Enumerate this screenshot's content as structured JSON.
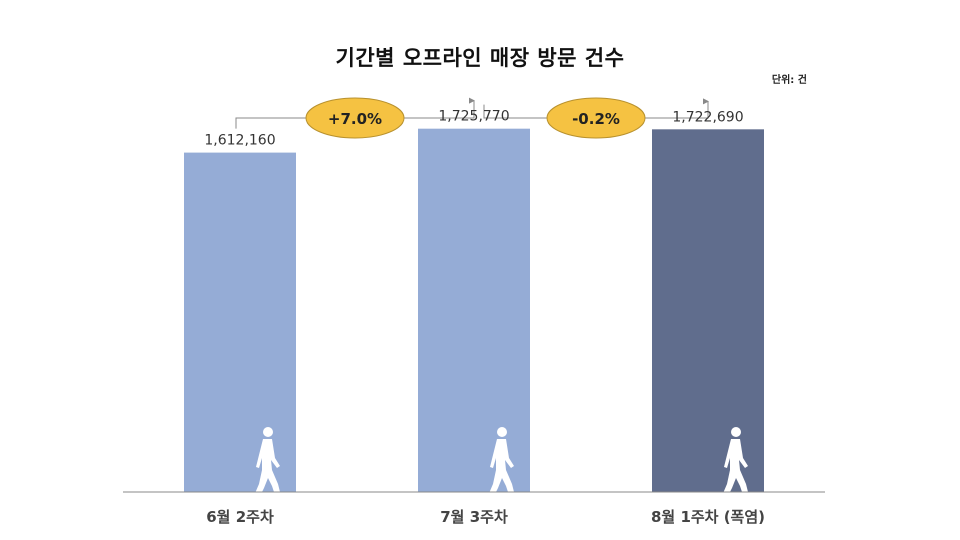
{
  "unit_label": "단위: 건",
  "chart_data": {
    "type": "bar",
    "title": "기간별 오프라인 매장 방문 건수",
    "categories": [
      "6월 2주차",
      "7월 3주차",
      "8월 1주차 (폭염)"
    ],
    "values": [
      1612160,
      1725770,
      1722690
    ],
    "value_labels": [
      "1,612,160",
      "1,725,770",
      "1,722,690"
    ],
    "colors": [
      "#95acd6",
      "#95acd6",
      "#606d8d"
    ],
    "ylim": [
      0,
      1900000
    ],
    "grid": false,
    "legend": "none",
    "annotations": [
      {
        "from": 0,
        "to": 1,
        "label": "+7.0%",
        "color": "#f5c242"
      },
      {
        "from": 1,
        "to": 2,
        "label": "-0.2%",
        "color": "#f5c242"
      }
    ],
    "icons": [
      "walking-person-icon",
      "walking-person-icon",
      "walking-person-icon"
    ]
  }
}
